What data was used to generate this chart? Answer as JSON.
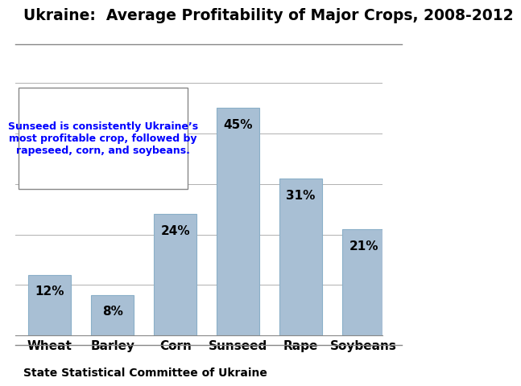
{
  "title": "Ukraine:  Average Profitability of Major Crops, 2008-2012",
  "categories": [
    "Wheat",
    "Barley",
    "Corn",
    "Sunseed",
    "Rape",
    "Soybeans"
  ],
  "values": [
    12,
    8,
    24,
    45,
    31,
    21
  ],
  "bar_color": "#a8bfd4",
  "bar_edge_color": "#8aafc8",
  "label_fontsize": 11,
  "title_fontsize": 13.5,
  "annotation_text": "Sunseed is consistently Ukraine’s\nmost profitable crop, followed by\nrapeseed, corn, and soybeans.",
  "annotation_color": "#0000ff",
  "source_text": "State Statistical Committee of Ukraine",
  "ylim": [
    0,
    55
  ],
  "background_color": "#ffffff",
  "grid_color": "#b0b0b0"
}
